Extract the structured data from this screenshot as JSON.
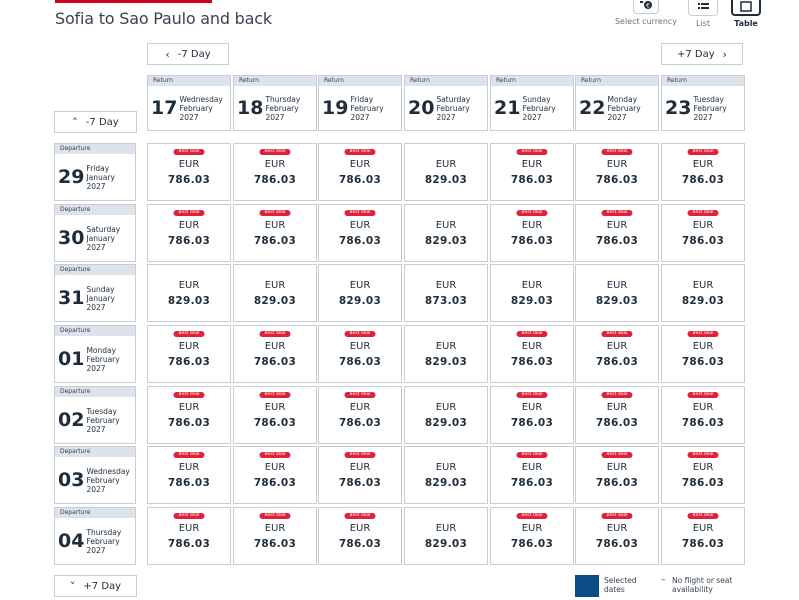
{
  "page": {
    "title": "Sofia to Sao Paulo and back"
  },
  "top_actions": [
    {
      "name": "currency",
      "label": "Select currency",
      "icon": "currency-icon"
    },
    {
      "name": "list",
      "label": "List",
      "icon": "list-icon"
    },
    {
      "name": "table",
      "label": "Table",
      "icon": "table-icon"
    }
  ],
  "nav": {
    "prev_return": "-7 Day",
    "next_return": "+7 Day",
    "prev_departure": "-7 Day",
    "next_departure": "+7 Day"
  },
  "labels": {
    "return": "Return",
    "departure": "Departure",
    "best_deal": "Best deal"
  },
  "return_dates": [
    {
      "num": "17",
      "weekday": "Wednesday",
      "month": "February",
      "year": "2027"
    },
    {
      "num": "18",
      "weekday": "Thursday",
      "month": "February",
      "year": "2027"
    },
    {
      "num": "19",
      "weekday": "Friday",
      "month": "February",
      "year": "2027"
    },
    {
      "num": "20",
      "weekday": "Saturday",
      "month": "February",
      "year": "2027"
    },
    {
      "num": "21",
      "weekday": "Sunday",
      "month": "February",
      "year": "2027"
    },
    {
      "num": "22",
      "weekday": "Monday",
      "month": "February",
      "year": "2027"
    },
    {
      "num": "23",
      "weekday": "Tuesday",
      "month": "February",
      "year": "2027"
    }
  ],
  "departure_dates": [
    {
      "num": "29",
      "weekday": "Friday",
      "month": "January",
      "year": "2027"
    },
    {
      "num": "30",
      "weekday": "Saturday",
      "month": "January",
      "year": "2027"
    },
    {
      "num": "31",
      "weekday": "Sunday",
      "month": "January",
      "year": "2027"
    },
    {
      "num": "01",
      "weekday": "Monday",
      "month": "February",
      "year": "2027"
    },
    {
      "num": "02",
      "weekday": "Tuesday",
      "month": "February",
      "year": "2027"
    },
    {
      "num": "03",
      "weekday": "Wednesday",
      "month": "February",
      "year": "2027"
    },
    {
      "num": "04",
      "weekday": "Thursday",
      "month": "February",
      "year": "2027"
    }
  ],
  "currency": "EUR",
  "prices": [
    [
      {
        "amount": "786.03",
        "best": true
      },
      {
        "amount": "786.03",
        "best": true
      },
      {
        "amount": "786.03",
        "best": true
      },
      {
        "amount": "829.03",
        "best": false
      },
      {
        "amount": "786.03",
        "best": true
      },
      {
        "amount": "786.03",
        "best": true
      },
      {
        "amount": "786.03",
        "best": true
      }
    ],
    [
      {
        "amount": "786.03",
        "best": true
      },
      {
        "amount": "786.03",
        "best": true
      },
      {
        "amount": "786.03",
        "best": true
      },
      {
        "amount": "829.03",
        "best": false
      },
      {
        "amount": "786.03",
        "best": true
      },
      {
        "amount": "786.03",
        "best": true
      },
      {
        "amount": "786.03",
        "best": true
      }
    ],
    [
      {
        "amount": "829.03",
        "best": false
      },
      {
        "amount": "829.03",
        "best": false
      },
      {
        "amount": "829.03",
        "best": false
      },
      {
        "amount": "873.03",
        "best": false
      },
      {
        "amount": "829.03",
        "best": false
      },
      {
        "amount": "829.03",
        "best": false
      },
      {
        "amount": "829.03",
        "best": false
      }
    ],
    [
      {
        "amount": "786.03",
        "best": true
      },
      {
        "amount": "786.03",
        "best": true
      },
      {
        "amount": "786.03",
        "best": true
      },
      {
        "amount": "829.03",
        "best": false
      },
      {
        "amount": "786.03",
        "best": true
      },
      {
        "amount": "786.03",
        "best": true
      },
      {
        "amount": "786.03",
        "best": true
      }
    ],
    [
      {
        "amount": "786.03",
        "best": true
      },
      {
        "amount": "786.03",
        "best": true
      },
      {
        "amount": "786.03",
        "best": true
      },
      {
        "amount": "829.03",
        "best": false
      },
      {
        "amount": "786.03",
        "best": true
      },
      {
        "amount": "786.03",
        "best": true
      },
      {
        "amount": "786.03",
        "best": true
      }
    ],
    [
      {
        "amount": "786.03",
        "best": true
      },
      {
        "amount": "786.03",
        "best": true
      },
      {
        "amount": "786.03",
        "best": true
      },
      {
        "amount": "829.03",
        "best": false
      },
      {
        "amount": "786.03",
        "best": true
      },
      {
        "amount": "786.03",
        "best": true
      },
      {
        "amount": "786.03",
        "best": true
      }
    ],
    [
      {
        "amount": "786.03",
        "best": true
      },
      {
        "amount": "786.03",
        "best": true
      },
      {
        "amount": "786.03",
        "best": true
      },
      {
        "amount": "829.03",
        "best": false
      },
      {
        "amount": "786.03",
        "best": true
      },
      {
        "amount": "786.03",
        "best": true
      },
      {
        "amount": "786.03",
        "best": true
      }
    ]
  ],
  "legend": {
    "selected": "Selected dates",
    "selected_color": "#0a4c86",
    "unavailable_symbol": "–",
    "unavailable": "No flight or seat availability"
  },
  "colors": {
    "best_deal": "#e0213a",
    "brand_red": "#d0021b",
    "header_strip": "#dde3ea"
  }
}
